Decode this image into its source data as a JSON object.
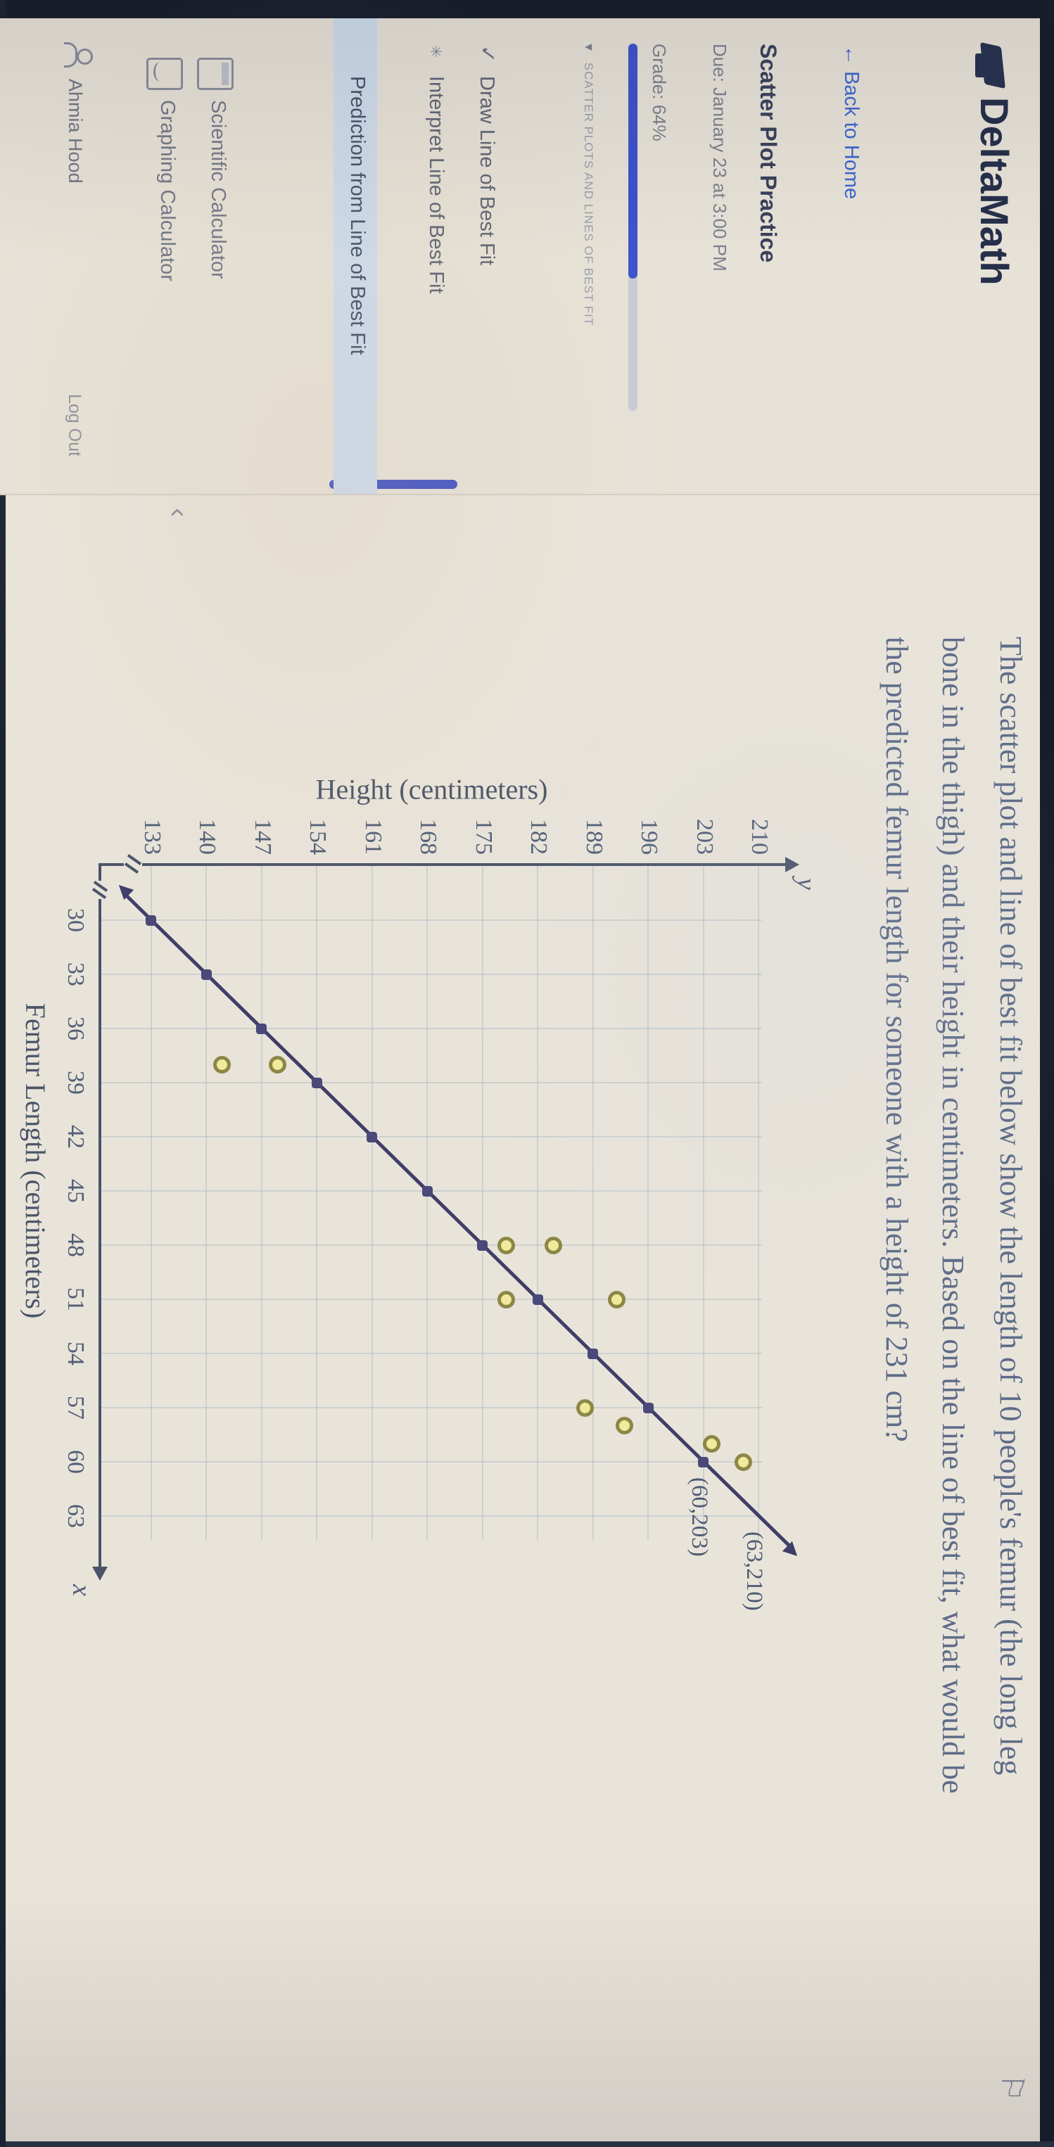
{
  "brand": "DeltaMath",
  "sidebar": {
    "back_link": "Back to Home",
    "back_arrow": "←",
    "assignment_title": "Scatter Plot Practice",
    "due": "Due: January 23 at 3:00 PM",
    "grade_label": "Grade: 64%",
    "grade_percent": 64,
    "section_caret": "▾",
    "section_label": "SCATTER PLOTS AND LINES OF BEST FIT",
    "skills": [
      {
        "label": "Draw Line of Best Fit",
        "icon": "check-icon",
        "glyph": "✓",
        "active": false
      },
      {
        "label": "Interpret Line of Best Fit",
        "icon": "asterisk-icon",
        "glyph": "✳",
        "active": false
      },
      {
        "label": "Prediction from Line of Best Fit",
        "icon": "",
        "glyph": "",
        "active": true
      }
    ],
    "tools": [
      {
        "label": "Scientific Calculator",
        "icon": "calculator-icon"
      },
      {
        "label": "Graphing Calculator",
        "icon": "graphing-calculator-icon"
      }
    ],
    "account_name": "Ahmia Hood",
    "logout_label": "Log Out",
    "collapse_glyph": "‹"
  },
  "problem": {
    "flag_glyph": "⚐",
    "text_lines": [
      "The scatter plot and line of best fit below show the length of 10 people's femur (the long leg",
      "bone in the thigh) and their height in centimeters. Based on the line of best fit, what would be",
      "the predicted femur length for someone with a height of 231 cm?"
    ]
  },
  "chart_data": {
    "type": "scatter",
    "xlabel": "Femur Length (centimeters)",
    "ylabel": "Height (centimeters)",
    "x_axis_letter": "x",
    "y_axis_letter": "y",
    "xlim": [
      30,
      63
    ],
    "ylim": [
      133,
      210
    ],
    "x_ticks": [
      30,
      33,
      36,
      39,
      42,
      45,
      48,
      51,
      54,
      57,
      60,
      63
    ],
    "y_ticks": [
      133,
      140,
      147,
      154,
      161,
      168,
      175,
      182,
      189,
      196,
      203,
      210
    ],
    "grid": true,
    "axis_breaks": true,
    "scatter_points": [
      [
        38,
        142
      ],
      [
        38,
        149
      ],
      [
        48,
        178
      ],
      [
        48,
        184
      ],
      [
        51,
        178
      ],
      [
        51,
        192
      ],
      [
        57,
        188
      ],
      [
        58,
        193
      ],
      [
        59,
        204
      ],
      [
        60,
        208
      ]
    ],
    "line_of_best_fit": {
      "through": [
        [
          60,
          203
        ],
        [
          63,
          210
        ]
      ],
      "slope_cm_per_unit": 2.3333,
      "extent_femur": [
        28.5,
        64.8
      ],
      "marker_femurs": [
        30,
        33,
        36,
        39,
        42,
        45,
        48,
        51,
        54,
        57,
        60
      ]
    },
    "annotations": [
      {
        "at": [
          60,
          203
        ],
        "label": "(60,203)"
      },
      {
        "at": [
          63,
          210
        ],
        "label": "(63,210)"
      }
    ]
  }
}
